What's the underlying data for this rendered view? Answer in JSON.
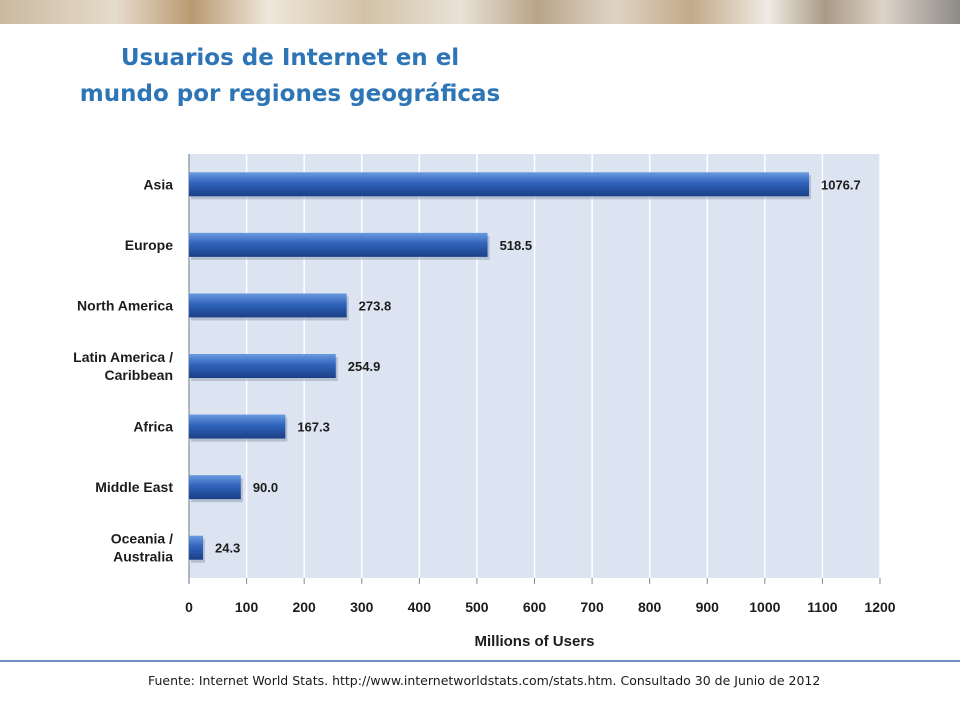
{
  "slide": {
    "title_line1": "Usuarios de Internet en el",
    "title_line2": "mundo por regiones geográficas",
    "source": "Fuente: Internet World Stats. http://www.internetworldstats.com/stats.htm.  Consultado 30 de Junio de 2012"
  },
  "chart_data": {
    "type": "bar",
    "orientation": "horizontal",
    "categories": [
      [
        "Asia"
      ],
      [
        "Europe"
      ],
      [
        "North America"
      ],
      [
        "Latin America /",
        "Caribbean"
      ],
      [
        "Africa"
      ],
      [
        "Middle East"
      ],
      [
        "Oceania  /",
        "Australia"
      ]
    ],
    "values": [
      1076.7,
      518.5,
      273.8,
      254.9,
      167.3,
      90.0,
      24.3
    ],
    "value_labels": [
      "1076.7",
      "518.5",
      "273.8",
      "254.9",
      "167.3",
      "90.0",
      "24.3"
    ],
    "xlabel": "Millions of Users",
    "xlim": [
      0,
      1200
    ],
    "xticks": [
      0,
      100,
      200,
      300,
      400,
      500,
      600,
      700,
      800,
      900,
      1000,
      1100,
      1200
    ],
    "grid": true,
    "colors": {
      "plot_bg": "#dbe4f0",
      "grid": "#ffffff",
      "bar_top": "#6a9be0",
      "bar_mid": "#2f63bb",
      "bar_bottom": "#1b3f86"
    }
  }
}
